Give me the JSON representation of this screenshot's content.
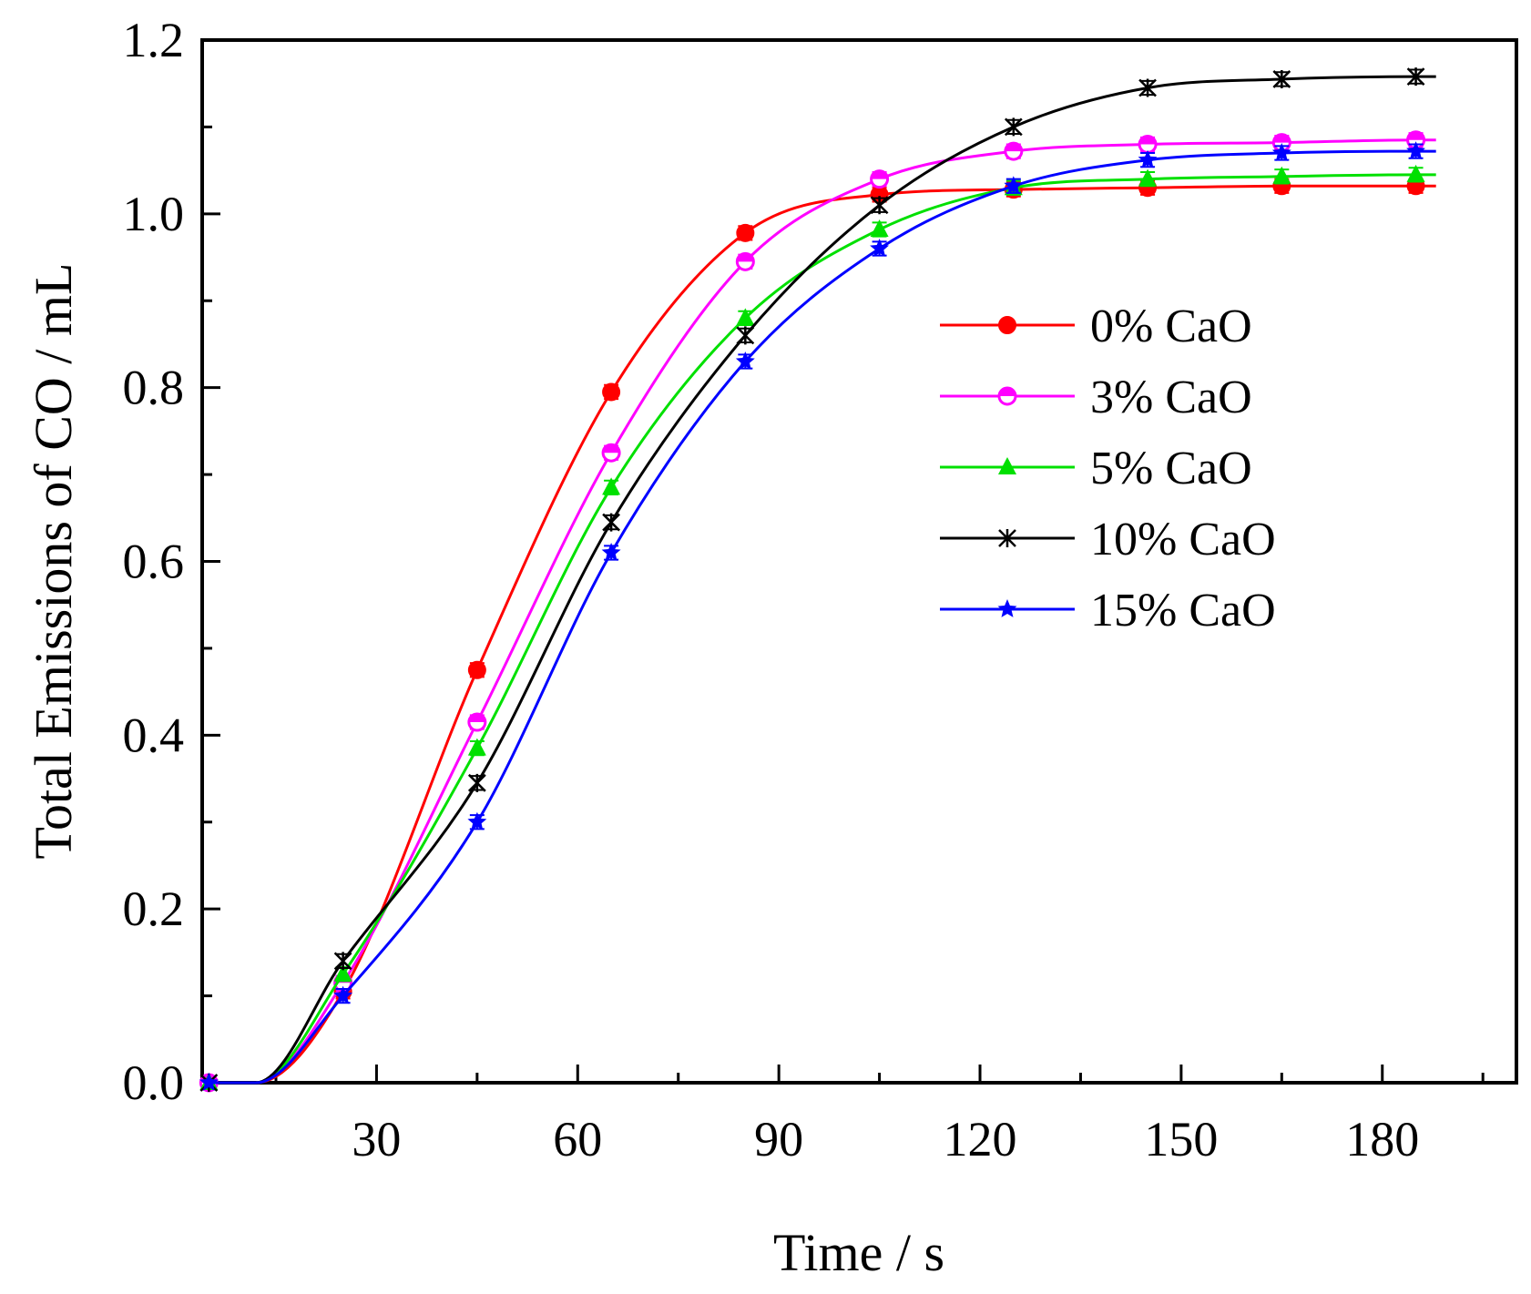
{
  "chart_data": {
    "type": "line",
    "title": "",
    "xlabel": "Time / s",
    "ylabel": "Total Emissions of CO / mL",
    "xlim": [
      4,
      200
    ],
    "ylim": [
      0.0,
      1.2
    ],
    "xticks": [
      30,
      60,
      90,
      120,
      150,
      180
    ],
    "xtick_labels": [
      "30",
      "60",
      "90",
      "120",
      "150",
      "180"
    ],
    "yticks": [
      0.0,
      0.2,
      0.4,
      0.6,
      0.8,
      1.0,
      1.2
    ],
    "ytick_labels": [
      "0.0",
      "0.2",
      "0.4",
      "0.6",
      "0.8",
      "1.0",
      "1.2"
    ],
    "grid": false,
    "legend_position": "center-right",
    "x": [
      5,
      25,
      45,
      65,
      85,
      105,
      125,
      145,
      165,
      185
    ],
    "series": [
      {
        "name": "0% CaO",
        "color": "#ff0000",
        "marker": "filled-circle",
        "values": [
          0.0,
          0.105,
          0.475,
          0.795,
          0.978,
          1.022,
          1.028,
          1.03,
          1.032,
          1.032
        ]
      },
      {
        "name": "3% CaO",
        "color": "#ff00ff",
        "marker": "half-circle",
        "values": [
          0.0,
          0.115,
          0.415,
          0.725,
          0.945,
          1.04,
          1.072,
          1.08,
          1.082,
          1.085
        ]
      },
      {
        "name": "5% CaO",
        "color": "#00e000",
        "marker": "triangle",
        "values": [
          0.0,
          0.125,
          0.385,
          0.685,
          0.88,
          0.982,
          1.03,
          1.04,
          1.043,
          1.045
        ]
      },
      {
        "name": "10% CaO",
        "color": "#000000",
        "marker": "asterisk",
        "values": [
          0.0,
          0.14,
          0.345,
          0.645,
          0.86,
          1.01,
          1.1,
          1.145,
          1.155,
          1.158
        ]
      },
      {
        "name": "15% CaO",
        "color": "#0000ff",
        "marker": "star",
        "values": [
          0.0,
          0.1,
          0.3,
          0.61,
          0.83,
          0.96,
          1.032,
          1.062,
          1.07,
          1.072
        ]
      }
    ]
  }
}
